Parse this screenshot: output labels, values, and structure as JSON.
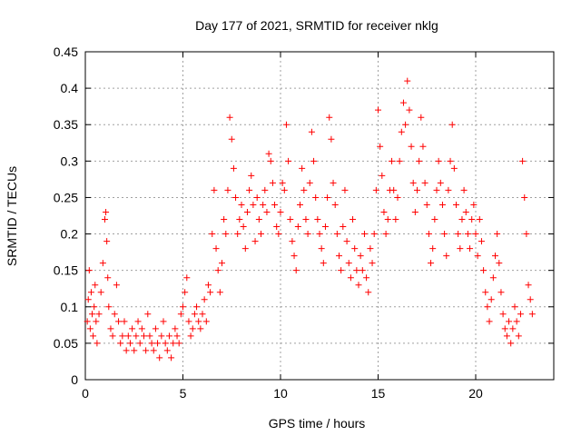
{
  "chart_data": {
    "type": "scatter",
    "title": "Day 177 of 2021, SRMTID for receiver nklg",
    "xlabel": "GPS time / hours",
    "ylabel": "SRMTID / TECUs",
    "xlim": [
      0,
      24
    ],
    "ylim": [
      0,
      0.45
    ],
    "xticks": [
      0,
      5,
      10,
      15,
      20
    ],
    "yticks": [
      0,
      0.05,
      0.1,
      0.15,
      0.2,
      0.25,
      0.3,
      0.35,
      0.4,
      0.45
    ],
    "xtick_labels": [
      "0",
      "5",
      "10",
      "15",
      "20"
    ],
    "ytick_labels": [
      "0",
      "0.05",
      "0.1",
      "0.15",
      "0.2",
      "0.25",
      "0.3",
      "0.35",
      "0.4",
      "0.45"
    ],
    "grid": true,
    "marker": "+",
    "color": "#ff0000",
    "series_description": "Per-satellite SRMTID values, ~0.05-0.1 TECU from 0-6.5 h, rising to 0.15-0.3 TECU from 7-20.5 h with peaks near 0.41 at 16.5 h, dropping to ~0.05-0.1 after 21 h",
    "points": [
      [
        0.1,
        0.08
      ],
      [
        0.15,
        0.11
      ],
      [
        0.2,
        0.15
      ],
      [
        0.25,
        0.07
      ],
      [
        0.3,
        0.12
      ],
      [
        0.35,
        0.09
      ],
      [
        0.4,
        0.06
      ],
      [
        0.45,
        0.1
      ],
      [
        0.5,
        0.13
      ],
      [
        0.55,
        0.08
      ],
      [
        0.6,
        0.05
      ],
      [
        0.7,
        0.09
      ],
      [
        0.8,
        0.12
      ],
      [
        0.9,
        0.16
      ],
      [
        1.0,
        0.22
      ],
      [
        1.05,
        0.23
      ],
      [
        1.1,
        0.19
      ],
      [
        1.15,
        0.14
      ],
      [
        1.2,
        0.1
      ],
      [
        1.3,
        0.07
      ],
      [
        1.4,
        0.06
      ],
      [
        1.5,
        0.09
      ],
      [
        1.6,
        0.13
      ],
      [
        1.7,
        0.08
      ],
      [
        1.8,
        0.05
      ],
      [
        1.9,
        0.06
      ],
      [
        2.0,
        0.08
      ],
      [
        2.1,
        0.04
      ],
      [
        2.2,
        0.06
      ],
      [
        2.3,
        0.05
      ],
      [
        2.4,
        0.07
      ],
      [
        2.5,
        0.04
      ],
      [
        2.6,
        0.06
      ],
      [
        2.7,
        0.08
      ],
      [
        2.8,
        0.05
      ],
      [
        2.9,
        0.07
      ],
      [
        3.0,
        0.06
      ],
      [
        3.1,
        0.04
      ],
      [
        3.2,
        0.09
      ],
      [
        3.3,
        0.06
      ],
      [
        3.4,
        0.05
      ],
      [
        3.5,
        0.04
      ],
      [
        3.6,
        0.07
      ],
      [
        3.7,
        0.05
      ],
      [
        3.8,
        0.03
      ],
      [
        3.9,
        0.06
      ],
      [
        4.0,
        0.08
      ],
      [
        4.1,
        0.05
      ],
      [
        4.2,
        0.04
      ],
      [
        4.3,
        0.06
      ],
      [
        4.4,
        0.03
      ],
      [
        4.5,
        0.05
      ],
      [
        4.6,
        0.07
      ],
      [
        4.7,
        0.06
      ],
      [
        4.8,
        0.05
      ],
      [
        4.9,
        0.09
      ],
      [
        5.0,
        0.1
      ],
      [
        5.1,
        0.12
      ],
      [
        5.2,
        0.14
      ],
      [
        5.3,
        0.08
      ],
      [
        5.4,
        0.06
      ],
      [
        5.5,
        0.07
      ],
      [
        5.6,
        0.09
      ],
      [
        5.7,
        0.1
      ],
      [
        5.8,
        0.08
      ],
      [
        5.9,
        0.07
      ],
      [
        6.0,
        0.09
      ],
      [
        6.1,
        0.11
      ],
      [
        6.2,
        0.08
      ],
      [
        6.3,
        0.13
      ],
      [
        6.4,
        0.12
      ],
      [
        6.5,
        0.2
      ],
      [
        6.6,
        0.26
      ],
      [
        6.7,
        0.18
      ],
      [
        6.8,
        0.15
      ],
      [
        6.9,
        0.12
      ],
      [
        7.0,
        0.16
      ],
      [
        7.1,
        0.22
      ],
      [
        7.2,
        0.2
      ],
      [
        7.3,
        0.26
      ],
      [
        7.4,
        0.36
      ],
      [
        7.5,
        0.33
      ],
      [
        7.6,
        0.29
      ],
      [
        7.7,
        0.25
      ],
      [
        7.8,
        0.2
      ],
      [
        7.9,
        0.22
      ],
      [
        8.0,
        0.24
      ],
      [
        8.1,
        0.21
      ],
      [
        8.2,
        0.18
      ],
      [
        8.3,
        0.23
      ],
      [
        8.4,
        0.26
      ],
      [
        8.5,
        0.28
      ],
      [
        8.6,
        0.24
      ],
      [
        8.7,
        0.19
      ],
      [
        8.8,
        0.25
      ],
      [
        8.9,
        0.22
      ],
      [
        9.0,
        0.2
      ],
      [
        9.1,
        0.24
      ],
      [
        9.2,
        0.26
      ],
      [
        9.3,
        0.23
      ],
      [
        9.4,
        0.31
      ],
      [
        9.5,
        0.3
      ],
      [
        9.6,
        0.27
      ],
      [
        9.7,
        0.24
      ],
      [
        9.8,
        0.21
      ],
      [
        9.9,
        0.2
      ],
      [
        10.0,
        0.23
      ],
      [
        10.1,
        0.27
      ],
      [
        10.2,
        0.26
      ],
      [
        10.3,
        0.35
      ],
      [
        10.4,
        0.3
      ],
      [
        10.5,
        0.22
      ],
      [
        10.6,
        0.19
      ],
      [
        10.7,
        0.17
      ],
      [
        10.8,
        0.15
      ],
      [
        10.9,
        0.21
      ],
      [
        11.0,
        0.24
      ],
      [
        11.1,
        0.29
      ],
      [
        11.2,
        0.26
      ],
      [
        11.3,
        0.22
      ],
      [
        11.4,
        0.2
      ],
      [
        11.5,
        0.27
      ],
      [
        11.6,
        0.34
      ],
      [
        11.7,
        0.3
      ],
      [
        11.8,
        0.25
      ],
      [
        11.9,
        0.22
      ],
      [
        12.0,
        0.2
      ],
      [
        12.1,
        0.18
      ],
      [
        12.2,
        0.16
      ],
      [
        12.3,
        0.21
      ],
      [
        12.4,
        0.25
      ],
      [
        12.5,
        0.36
      ],
      [
        12.6,
        0.33
      ],
      [
        12.7,
        0.27
      ],
      [
        12.8,
        0.24
      ],
      [
        12.9,
        0.2
      ],
      [
        13.0,
        0.17
      ],
      [
        13.1,
        0.15
      ],
      [
        13.2,
        0.21
      ],
      [
        13.3,
        0.26
      ],
      [
        13.4,
        0.19
      ],
      [
        13.5,
        0.16
      ],
      [
        13.6,
        0.14
      ],
      [
        13.7,
        0.22
      ],
      [
        13.8,
        0.18
      ],
      [
        13.9,
        0.15
      ],
      [
        14.0,
        0.13
      ],
      [
        14.1,
        0.17
      ],
      [
        14.2,
        0.15
      ],
      [
        14.3,
        0.2
      ],
      [
        14.4,
        0.14
      ],
      [
        14.5,
        0.12
      ],
      [
        14.6,
        0.18
      ],
      [
        14.7,
        0.16
      ],
      [
        14.8,
        0.2
      ],
      [
        14.9,
        0.26
      ],
      [
        15.0,
        0.37
      ],
      [
        15.1,
        0.32
      ],
      [
        15.2,
        0.28
      ],
      [
        15.3,
        0.23
      ],
      [
        15.4,
        0.2
      ],
      [
        15.5,
        0.22
      ],
      [
        15.6,
        0.26
      ],
      [
        15.7,
        0.3
      ],
      [
        15.8,
        0.26
      ],
      [
        15.9,
        0.22
      ],
      [
        16.0,
        0.25
      ],
      [
        16.1,
        0.3
      ],
      [
        16.2,
        0.34
      ],
      [
        16.3,
        0.38
      ],
      [
        16.4,
        0.35
      ],
      [
        16.5,
        0.41
      ],
      [
        16.6,
        0.37
      ],
      [
        16.7,
        0.32
      ],
      [
        16.8,
        0.27
      ],
      [
        16.9,
        0.23
      ],
      [
        17.0,
        0.26
      ],
      [
        17.1,
        0.3
      ],
      [
        17.2,
        0.36
      ],
      [
        17.3,
        0.32
      ],
      [
        17.4,
        0.27
      ],
      [
        17.5,
        0.24
      ],
      [
        17.6,
        0.2
      ],
      [
        17.7,
        0.16
      ],
      [
        17.8,
        0.18
      ],
      [
        17.9,
        0.22
      ],
      [
        18.0,
        0.26
      ],
      [
        18.1,
        0.3
      ],
      [
        18.2,
        0.27
      ],
      [
        18.3,
        0.24
      ],
      [
        18.4,
        0.2
      ],
      [
        18.5,
        0.17
      ],
      [
        18.6,
        0.26
      ],
      [
        18.7,
        0.3
      ],
      [
        18.8,
        0.35
      ],
      [
        18.9,
        0.29
      ],
      [
        19.0,
        0.24
      ],
      [
        19.1,
        0.2
      ],
      [
        19.2,
        0.18
      ],
      [
        19.3,
        0.22
      ],
      [
        19.4,
        0.26
      ],
      [
        19.5,
        0.23
      ],
      [
        19.6,
        0.2
      ],
      [
        19.7,
        0.18
      ],
      [
        19.8,
        0.22
      ],
      [
        19.9,
        0.24
      ],
      [
        20.0,
        0.2
      ],
      [
        20.1,
        0.17
      ],
      [
        20.2,
        0.22
      ],
      [
        20.3,
        0.19
      ],
      [
        20.4,
        0.15
      ],
      [
        20.5,
        0.12
      ],
      [
        20.6,
        0.1
      ],
      [
        20.7,
        0.08
      ],
      [
        20.8,
        0.11
      ],
      [
        20.9,
        0.14
      ],
      [
        21.0,
        0.17
      ],
      [
        21.1,
        0.2
      ],
      [
        21.2,
        0.16
      ],
      [
        21.3,
        0.12
      ],
      [
        21.4,
        0.09
      ],
      [
        21.5,
        0.07
      ],
      [
        21.6,
        0.06
      ],
      [
        21.7,
        0.08
      ],
      [
        21.8,
        0.05
      ],
      [
        21.9,
        0.07
      ],
      [
        22.0,
        0.1
      ],
      [
        22.1,
        0.08
      ],
      [
        22.2,
        0.06
      ],
      [
        22.3,
        0.09
      ],
      [
        22.4,
        0.3
      ],
      [
        22.5,
        0.25
      ],
      [
        22.6,
        0.2
      ],
      [
        22.7,
        0.13
      ],
      [
        22.8,
        0.11
      ],
      [
        22.9,
        0.09
      ]
    ]
  }
}
